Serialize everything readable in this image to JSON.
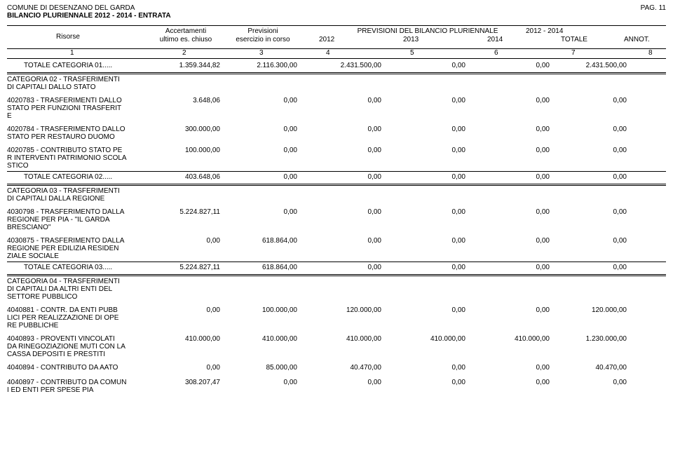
{
  "header": {
    "comune": "COMUNE DI DESENZANO DEL GARDA",
    "title": "BILANCIO PLURIENNALE 2012 - 2014    - ENTRATA",
    "pag": "PAG. 11"
  },
  "colhead": {
    "risorse": "Risorse",
    "accert": "Accertamenti",
    "ultimo": "ultimo es. chiuso",
    "prev": "Previsioni",
    "eserc": "esercizio in corso",
    "prevbil": "PREVISIONI DEL BILANCIO PLURIENNALE",
    "range": "2012 - 2014",
    "y2012": "2012",
    "y2013": "2013",
    "y2014": "2014",
    "totale": "TOTALE",
    "annot": "ANNOT.",
    "n1": "1",
    "n2": "2",
    "n3": "3",
    "n4": "4",
    "n5": "5",
    "n6": "6",
    "n7": "7",
    "n8": "8"
  },
  "rows": {
    "totcat01": {
      "label": "TOTALE CATEGORIA 01.....",
      "c2": "1.359.344,82",
      "c3": "2.116.300,00",
      "c4": "2.431.500,00",
      "c5": "0,00",
      "c6": "0,00",
      "c7": "2.431.500,00"
    },
    "cat02hdr": "CATEGORIA 02 - TRASFERIMENTI\nDI CAPITALI DALLO STATO",
    "r4020783": {
      "label": "4020783 - TRASFERIMENTI DALLO\nSTATO PER FUNZIONI TRASFERIT\nE",
      "c2": "3.648,06",
      "c3": "0,00",
      "c4": "0,00",
      "c5": "0,00",
      "c6": "0,00",
      "c7": "0,00"
    },
    "r4020784": {
      "label": "4020784 - TRASFERIMENTO DALLO\nSTATO PER RESTAURO DUOMO",
      "c2": "300.000,00",
      "c3": "0,00",
      "c4": "0,00",
      "c5": "0,00",
      "c6": "0,00",
      "c7": "0,00"
    },
    "r4020785": {
      "label": "4020785 - CONTRIBUTO STATO PE\nR INTERVENTI PATRIMONIO SCOLA\nSTICO",
      "c2": "100.000,00",
      "c3": "0,00",
      "c4": "0,00",
      "c5": "0,00",
      "c6": "0,00",
      "c7": "0,00"
    },
    "totcat02": {
      "label": "TOTALE CATEGORIA 02.....",
      "c2": "403.648,06",
      "c3": "0,00",
      "c4": "0,00",
      "c5": "0,00",
      "c6": "0,00",
      "c7": "0,00"
    },
    "cat03hdr": "CATEGORIA 03 - TRASFERIMENTI\nDI CAPITALI DALLA REGIONE",
    "r4030798": {
      "label": "4030798 - TRASFERIMENTO DALLA\nREGIONE PER PIA - \"IL GARDA\nBRESCIANO\"",
      "c2": "5.224.827,11",
      "c3": "0,00",
      "c4": "0,00",
      "c5": "0,00",
      "c6": "0,00",
      "c7": "0,00"
    },
    "r4030875": {
      "label": "4030875 - TRASFERIMENTO DALLA\nREGIONE PER EDILIZIA RESIDEN\nZIALE SOCIALE",
      "c2": "0,00",
      "c3": "618.864,00",
      "c4": "0,00",
      "c5": "0,00",
      "c6": "0,00",
      "c7": "0,00"
    },
    "totcat03": {
      "label": "TOTALE CATEGORIA 03.....",
      "c2": "5.224.827,11",
      "c3": "618.864,00",
      "c4": "0,00",
      "c5": "0,00",
      "c6": "0,00",
      "c7": "0,00"
    },
    "cat04hdr": "CATEGORIA 04 - TRASFERIMENTI\nDI CAPITALI DA ALTRI ENTI DEL\nSETTORE PUBBLICO",
    "r4040881": {
      "label": "4040881 - CONTR. DA ENTI PUBB\nLICI PER REALIZZAZIONE DI OPE\nRE PUBBLICHE",
      "c2": "0,00",
      "c3": "100.000,00",
      "c4": "120.000,00",
      "c5": "0,00",
      "c6": "0,00",
      "c7": "120.000,00"
    },
    "r4040893": {
      "label": "4040893 - PROVENTI VINCOLATI\nDA RINEGOZIAZIONE MUTI CON LA\nCASSA DEPOSITI E PRESTITI",
      "c2": "410.000,00",
      "c3": "410.000,00",
      "c4": "410.000,00",
      "c5": "410.000,00",
      "c6": "410.000,00",
      "c7": "1.230.000,00"
    },
    "r4040894": {
      "label": "4040894 - CONTRIBUTO DA AATO",
      "c2": "0,00",
      "c3": "85.000,00",
      "c4": "40.470,00",
      "c5": "0,00",
      "c6": "0,00",
      "c7": "40.470,00"
    },
    "r4040897": {
      "label": "4040897 - CONTRIBUTO DA COMUN\nI ED ENTI PER SPESE PIA",
      "c2": "308.207,47",
      "c3": "0,00",
      "c4": "0,00",
      "c5": "0,00",
      "c6": "0,00",
      "c7": "0,00"
    }
  }
}
